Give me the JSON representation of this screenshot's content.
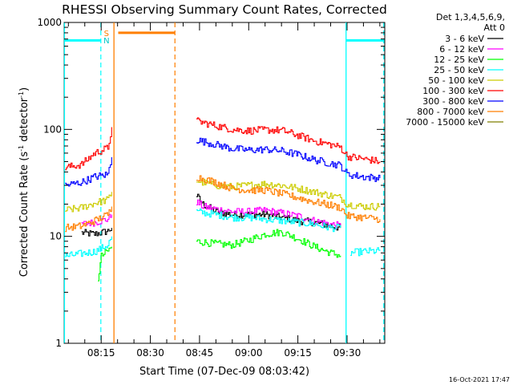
{
  "chart_data": {
    "type": "line",
    "title": "RHESSI Observing Summary Count Rates, Corrected",
    "xlabel": "Start Time (07-Dec-09 08:03:42)",
    "ylabel_main": "Corrected Count Rate (s",
    "ylabel_sup1": "-1",
    "ylabel_mid": " detector",
    "ylabel_sup2": "-1",
    "ylabel_end": ")",
    "y_scale": "log",
    "ylim": [
      1,
      1000
    ],
    "y_ticks": [
      {
        "value": 1,
        "label": "1"
      },
      {
        "value": 10,
        "label": "10"
      },
      {
        "value": 100,
        "label": "100"
      },
      {
        "value": 1000,
        "label": "1000"
      }
    ],
    "x_range_minutes": [
      3.0,
      45.3
    ],
    "x_unit": "minutes after 08:00",
    "x_ticks": [
      {
        "value": 15,
        "label": "08:15"
      },
      {
        "value": 30,
        "label": "08:30"
      },
      {
        "value": 45,
        "label": "08:45"
      },
      {
        "value": 60,
        "label": "09:00"
      },
      {
        "value": 75,
        "label": "09:15"
      },
      {
        "value": 90,
        "label": "09:30"
      }
    ],
    "x_domain_minutes": [
      3.7,
      101.5
    ],
    "legend_header": [
      "Det 1,3,4,5,6,9,",
      "Att 0"
    ],
    "legend_placement": "right",
    "series": [
      {
        "name": "3 - 6 keV",
        "color": "#000000",
        "segments": [
          [
            [
              9,
              10.8
            ],
            [
              13,
              10.5
            ],
            [
              17,
              11.2
            ],
            [
              18.2,
              12
            ]
          ],
          [
            [
              44,
              24
            ],
            [
              46,
              20
            ],
            [
              50,
              17
            ],
            [
              55,
              16
            ],
            [
              60,
              16
            ],
            [
              65,
              16
            ],
            [
              70,
              15
            ],
            [
              75,
              14
            ],
            [
              80,
              13.5
            ],
            [
              85,
              12.5
            ],
            [
              88,
              12
            ]
          ]
        ]
      },
      {
        "name": "6 - 12 keV",
        "color": "#ff00ff",
        "segments": [
          [
            [
              9,
              13
            ],
            [
              13,
              13.5
            ],
            [
              17,
              14.5
            ],
            [
              18.2,
              16
            ]
          ],
          [
            [
              44,
              21
            ],
            [
              46,
              19
            ],
            [
              50,
              18
            ],
            [
              55,
              17
            ],
            [
              60,
              17
            ],
            [
              65,
              17.5
            ],
            [
              70,
              16.5
            ],
            [
              75,
              15.5
            ],
            [
              80,
              14
            ],
            [
              85,
              13
            ],
            [
              88,
              12.5
            ]
          ]
        ]
      },
      {
        "name": "12 - 25 keV",
        "color": "#00ff00",
        "segments": [
          [
            [
              14,
              4
            ],
            [
              15,
              6.5
            ],
            [
              17,
              7.3
            ],
            [
              18.2,
              8
            ]
          ],
          [
            [
              44,
              9
            ],
            [
              50,
              8.5
            ],
            [
              55,
              8.3
            ],
            [
              60,
              9.2
            ],
            [
              65,
              10.5
            ],
            [
              70,
              11
            ],
            [
              75,
              9.5
            ],
            [
              80,
              8
            ],
            [
              85,
              7
            ],
            [
              88,
              6.6
            ]
          ]
        ]
      },
      {
        "name": "25 - 50 keV",
        "color": "#00ffff",
        "segments": [
          [
            [
              4,
              6.5
            ],
            [
              9,
              6.9
            ],
            [
              13,
              7.2
            ],
            [
              17,
              8.3
            ],
            [
              18.2,
              10
            ]
          ],
          [
            [
              44,
              17
            ],
            [
              50,
              16
            ],
            [
              55,
              15
            ],
            [
              60,
              15
            ],
            [
              65,
              14.5
            ],
            [
              70,
              14
            ],
            [
              75,
              13.5
            ],
            [
              80,
              13
            ],
            [
              85,
              12
            ],
            [
              88,
              12
            ]
          ],
          [
            [
              91,
              7
            ],
            [
              95,
              7.2
            ],
            [
              100,
              7.3
            ]
          ]
        ]
      },
      {
        "name": "50 - 100 keV",
        "color": "#cccc00",
        "segments": [
          [
            [
              4,
              17.5
            ],
            [
              9,
              18.5
            ],
            [
              13,
              20.5
            ],
            [
              17,
              22
            ],
            [
              18.2,
              26
            ]
          ],
          [
            [
              44,
              33
            ],
            [
              50,
              30
            ],
            [
              55,
              29
            ],
            [
              60,
              30
            ],
            [
              65,
              31
            ],
            [
              70,
              30
            ],
            [
              75,
              28
            ],
            [
              80,
              26
            ],
            [
              85,
              24
            ],
            [
              88,
              23
            ],
            [
              90,
              20
            ],
            [
              95,
              19
            ],
            [
              100,
              19
            ]
          ]
        ]
      },
      {
        "name": "100 - 300 keV",
        "color": "#ff0000",
        "segments": [
          [
            [
              4,
              44
            ],
            [
              9,
              47
            ],
            [
              13,
              60
            ],
            [
              17,
              67
            ],
            [
              18.2,
              105
            ]
          ],
          [
            [
              44,
              120
            ],
            [
              50,
              108
            ],
            [
              55,
              100
            ],
            [
              60,
              97
            ],
            [
              65,
              99
            ],
            [
              70,
              98
            ],
            [
              75,
              88
            ],
            [
              80,
              78
            ],
            [
              85,
              72
            ],
            [
              88,
              68
            ],
            [
              90,
              56
            ],
            [
              95,
              53
            ],
            [
              100,
              50
            ]
          ]
        ]
      },
      {
        "name": "300 - 800 keV",
        "color": "#0000ff",
        "segments": [
          [
            [
              4,
              30
            ],
            [
              9,
              32
            ],
            [
              13,
              36
            ],
            [
              17,
              38
            ],
            [
              18.2,
              55
            ]
          ],
          [
            [
              44,
              80
            ],
            [
              50,
              72
            ],
            [
              55,
              66
            ],
            [
              60,
              64
            ],
            [
              65,
              65
            ],
            [
              70,
              63
            ],
            [
              75,
              58
            ],
            [
              80,
              52
            ],
            [
              85,
              48
            ],
            [
              88,
              46
            ],
            [
              90,
              38
            ],
            [
              95,
              36
            ],
            [
              100,
              35
            ]
          ]
        ]
      },
      {
        "name": "800 - 7000 keV",
        "color": "#ff7f00",
        "segments": [
          [
            [
              4,
              12
            ],
            [
              9,
              12.5
            ],
            [
              13,
              14
            ],
            [
              17,
              16
            ],
            [
              18.2,
              19
            ]
          ],
          [
            [
              44,
              36
            ],
            [
              50,
              32
            ],
            [
              55,
              28
            ],
            [
              60,
              27
            ],
            [
              65,
              27
            ],
            [
              70,
              25
            ],
            [
              75,
              23
            ],
            [
              80,
              21
            ],
            [
              85,
              19.5
            ],
            [
              88,
              18.5
            ],
            [
              90,
              15.5
            ],
            [
              95,
              15
            ],
            [
              100,
              14.5
            ]
          ]
        ]
      },
      {
        "name": "7000 - 15000 keV",
        "color": "#7f7f00",
        "segments": []
      }
    ],
    "markers": {
      "saa_label": "S",
      "night_label": "N",
      "solid_lines": [
        {
          "x": 3.8,
          "color": "#00ffff"
        },
        {
          "x": 18.9,
          "color": "#ff7f00"
        },
        {
          "x": 89.7,
          "color": "#00ffff"
        }
      ],
      "dashed_lines": [
        {
          "x": 14.9,
          "color": "#00ffff"
        },
        {
          "x": 37.5,
          "color": "#ff7f00"
        },
        {
          "x": 101.2,
          "color": "#00ffff"
        }
      ],
      "bars": [
        {
          "x0": 3.8,
          "x1": 14.9,
          "y": 680,
          "color": "#00ffff"
        },
        {
          "x0": 20.2,
          "x1": 37.5,
          "y": 800,
          "color": "#ff7f00"
        },
        {
          "x0": 89.7,
          "x1": 101.2,
          "y": 680,
          "color": "#00ffff"
        }
      ]
    }
  },
  "timestamp": "16-Oct-2021 17:47"
}
